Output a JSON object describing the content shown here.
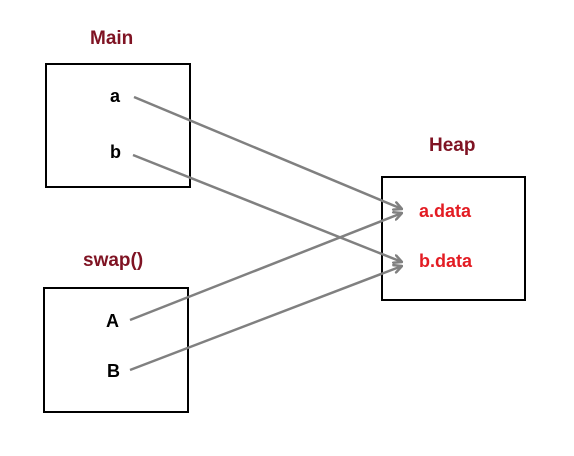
{
  "main": {
    "title": "Main",
    "vars": [
      "a",
      "b"
    ]
  },
  "swap": {
    "title": "swap()",
    "vars": [
      "A",
      "B"
    ]
  },
  "heap": {
    "title": "Heap",
    "values": [
      "a.data",
      "b.data"
    ]
  },
  "colors": {
    "title": "#7f1323",
    "heap_text": "#e31c23",
    "arrow": "#808080",
    "border": "#000000"
  }
}
